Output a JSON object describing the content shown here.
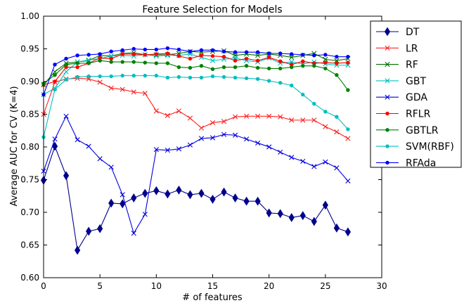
{
  "chart_data": {
    "type": "line",
    "title": "Feature Selection for Models",
    "xlabel": "# of features",
    "ylabel": "Average AUC for CV (K=4)",
    "xlim": [
      0,
      30
    ],
    "ylim": [
      0.6,
      1.0
    ],
    "xticks": [
      "0",
      "5",
      "10",
      "15",
      "20",
      "25",
      "30"
    ],
    "yticks": [
      "0.60",
      "0.65",
      "0.70",
      "0.75",
      "0.80",
      "0.85",
      "0.90",
      "0.95",
      "1.00"
    ],
    "grid": false,
    "legend_position": "top-right outside",
    "x": [
      0,
      1,
      2,
      3,
      4,
      5,
      6,
      7,
      8,
      9,
      10,
      11,
      12,
      13,
      14,
      15,
      16,
      17,
      18,
      19,
      20,
      21,
      22,
      23,
      24,
      25,
      26,
      27
    ],
    "series": [
      {
        "name": "DT",
        "color": "#00008b",
        "marker": "diamond",
        "values": [
          0.749,
          0.801,
          0.756,
          0.642,
          0.671,
          0.675,
          0.714,
          0.713,
          0.722,
          0.729,
          0.733,
          0.728,
          0.734,
          0.727,
          0.729,
          0.72,
          0.731,
          0.722,
          0.717,
          0.717,
          0.699,
          0.698,
          0.692,
          0.695,
          0.686,
          0.711,
          0.676,
          0.67
        ]
      },
      {
        "name": "LR",
        "color": "#ff2020",
        "marker": "x",
        "values": [
          0.85,
          0.899,
          0.904,
          0.905,
          0.904,
          0.899,
          0.89,
          0.888,
          0.884,
          0.882,
          0.855,
          0.848,
          0.855,
          0.844,
          0.829,
          0.837,
          0.839,
          0.846,
          0.847,
          0.847,
          0.847,
          0.846,
          0.841,
          0.841,
          0.841,
          0.831,
          0.823,
          0.813
        ]
      },
      {
        "name": "RF",
        "color": "#007000",
        "marker": "x",
        "values": [
          0.895,
          0.915,
          0.928,
          0.93,
          0.932,
          0.94,
          0.939,
          0.943,
          0.944,
          0.941,
          0.941,
          0.941,
          0.943,
          0.946,
          0.945,
          0.946,
          0.947,
          0.94,
          0.942,
          0.94,
          0.942,
          0.94,
          0.937,
          0.94,
          0.943,
          0.934,
          0.932,
          0.935
        ]
      },
      {
        "name": "GBT",
        "color": "#00c0c0",
        "marker": "x",
        "values": [
          0.88,
          0.89,
          0.915,
          0.93,
          0.933,
          0.935,
          0.939,
          0.94,
          0.939,
          0.941,
          0.939,
          0.94,
          0.94,
          0.942,
          0.937,
          0.932,
          0.934,
          0.936,
          0.932,
          0.93,
          0.936,
          0.928,
          0.93,
          0.927,
          0.93,
          0.927,
          0.925,
          0.925
        ]
      },
      {
        "name": "GDA",
        "color": "#0000e0",
        "marker": "x",
        "values": [
          0.763,
          0.812,
          0.847,
          0.811,
          0.801,
          0.782,
          0.769,
          0.727,
          0.668,
          0.697,
          0.796,
          0.795,
          0.797,
          0.803,
          0.813,
          0.814,
          0.819,
          0.818,
          0.812,
          0.806,
          0.8,
          0.792,
          0.784,
          0.778,
          0.77,
          0.777,
          0.768,
          0.748
        ]
      },
      {
        "name": "RFLR",
        "color": "#ff0000",
        "marker": "dot",
        "values": [
          0.895,
          0.9,
          0.922,
          0.922,
          0.928,
          0.936,
          0.935,
          0.942,
          0.942,
          0.941,
          0.942,
          0.943,
          0.939,
          0.935,
          0.94,
          0.939,
          0.938,
          0.932,
          0.935,
          0.932,
          0.937,
          0.931,
          0.926,
          0.931,
          0.928,
          0.929,
          0.928,
          0.929
        ]
      },
      {
        "name": "GBTLR",
        "color": "#008000",
        "marker": "dot",
        "values": [
          0.897,
          0.91,
          0.926,
          0.928,
          0.928,
          0.932,
          0.93,
          0.93,
          0.93,
          0.929,
          0.928,
          0.928,
          0.922,
          0.921,
          0.924,
          0.919,
          0.922,
          0.922,
          0.924,
          0.921,
          0.92,
          0.92,
          0.922,
          0.924,
          0.924,
          0.92,
          0.91,
          0.887
        ]
      },
      {
        "name": "SVM(RBF)",
        "color": "#00bfbf",
        "marker": "dot",
        "values": [
          0.815,
          0.888,
          0.903,
          0.907,
          0.908,
          0.908,
          0.908,
          0.909,
          0.909,
          0.909,
          0.909,
          0.906,
          0.907,
          0.906,
          0.906,
          0.908,
          0.907,
          0.906,
          0.905,
          0.904,
          0.901,
          0.898,
          0.894,
          0.88,
          0.866,
          0.854,
          0.846,
          0.827
        ]
      },
      {
        "name": "RFAda",
        "color": "#0000ff",
        "marker": "dot",
        "values": [
          0.88,
          0.926,
          0.935,
          0.94,
          0.941,
          0.942,
          0.946,
          0.948,
          0.95,
          0.949,
          0.949,
          0.951,
          0.949,
          0.946,
          0.948,
          0.948,
          0.946,
          0.945,
          0.945,
          0.945,
          0.943,
          0.943,
          0.942,
          0.941,
          0.94,
          0.941,
          0.938,
          0.938
        ]
      }
    ]
  }
}
